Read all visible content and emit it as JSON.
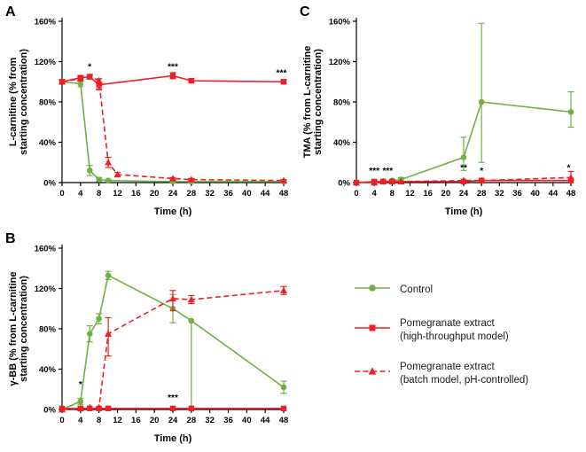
{
  "colors": {
    "control_green": "#72b043",
    "extract_red": "#ec2027",
    "axis_black": "#000000"
  },
  "legend": {
    "items": [
      {
        "label": "Control",
        "color": "#72b043",
        "marker": "circle",
        "dash": false
      },
      {
        "label": "Pomegranate extract\n(high-throughput model)",
        "color": "#ec2027",
        "marker": "square",
        "dash": false
      },
      {
        "label": "Pomegranate extract\n(batch model, pH-controlled)",
        "color": "#ec2027",
        "marker": "triangle",
        "dash": true
      }
    ]
  },
  "chart_data": [
    {
      "panel": "A",
      "type": "line",
      "title": "",
      "xlabel": "Time (h)",
      "ylabel": "L-carnitine (% from\nstarting concentration)",
      "xlim": [
        0,
        48
      ],
      "ylim": [
        0,
        160
      ],
      "xticks": [
        0,
        4,
        8,
        12,
        16,
        20,
        24,
        28,
        32,
        36,
        40,
        44,
        48
      ],
      "yticks": [
        0,
        40,
        80,
        120,
        160
      ],
      "ytick_labels": [
        "0%",
        "40%",
        "80%",
        "120%",
        "160%"
      ],
      "grid": false,
      "legend_position": "none",
      "series": [
        {
          "name": "Control",
          "color": "#72b043",
          "marker": "circle",
          "dash": false,
          "x": [
            0,
            4,
            6,
            8,
            10,
            24,
            28,
            48
          ],
          "y": [
            100,
            98,
            12,
            3,
            2,
            1,
            1,
            1
          ],
          "err_lo": [
            2,
            3,
            5,
            2,
            1,
            1,
            1,
            1
          ],
          "err_hi": [
            2,
            3,
            5,
            2,
            1,
            1,
            1,
            1
          ]
        },
        {
          "name": "Pomegranate extract (high-throughput model)",
          "color": "#ec2027",
          "marker": "square",
          "dash": false,
          "x": [
            0,
            4,
            6,
            8,
            24,
            28,
            48
          ],
          "y": [
            100,
            104,
            105,
            97,
            106,
            101,
            100
          ],
          "err_lo": [
            2,
            2,
            2,
            4,
            3,
            2,
            2
          ],
          "err_hi": [
            2,
            2,
            2,
            2,
            3,
            2,
            2
          ]
        },
        {
          "name": "Pomegranate extract (batch model, pH-controlled)",
          "color": "#ec2027",
          "marker": "triangle",
          "dash": true,
          "x": [
            0,
            4,
            6,
            8,
            10,
            12,
            24,
            28,
            48
          ],
          "y": [
            100,
            103,
            105,
            101,
            20,
            8,
            4,
            3,
            2
          ],
          "err_lo": [
            2,
            2,
            2,
            9,
            5,
            2,
            1,
            1,
            1
          ],
          "err_hi": [
            2,
            2,
            2,
            2,
            5,
            2,
            1,
            1,
            1
          ]
        }
      ],
      "annotations": [
        {
          "x": 6,
          "y": 112,
          "text": "*"
        },
        {
          "x": 24,
          "y": 112,
          "text": "***"
        },
        {
          "x": 47.5,
          "y": 106,
          "text": "***"
        }
      ]
    },
    {
      "panel": "B",
      "type": "line",
      "title": "",
      "xlabel": "Time (h)",
      "ylabel": "γ-BB (% from L-carnitine\nstarting concentration)",
      "xlim": [
        0,
        48
      ],
      "ylim": [
        0,
        160
      ],
      "xticks": [
        0,
        4,
        8,
        12,
        16,
        20,
        24,
        28,
        32,
        36,
        40,
        44,
        48
      ],
      "yticks": [
        0,
        40,
        80,
        120,
        160
      ],
      "ytick_labels": [
        "0%",
        "40%",
        "80%",
        "120%",
        "160%"
      ],
      "grid": false,
      "legend_position": "none",
      "series": [
        {
          "name": "Control",
          "color": "#72b043",
          "marker": "circle",
          "dash": false,
          "x": [
            0,
            4,
            6,
            8,
            10,
            24,
            28,
            48
          ],
          "y": [
            0,
            8,
            75,
            90,
            133,
            100,
            88,
            22
          ],
          "err_lo": [
            0,
            3,
            8,
            5,
            4,
            14,
            88,
            6
          ],
          "err_hi": [
            0,
            3,
            8,
            5,
            4,
            14,
            0,
            6
          ]
        },
        {
          "name": "Pomegranate extract (high-throughput model)",
          "color": "#ec2027",
          "marker": "square",
          "dash": false,
          "x": [
            0,
            4,
            6,
            8,
            10,
            24,
            28,
            48
          ],
          "y": [
            1,
            1,
            1,
            1,
            1,
            1,
            1,
            1
          ],
          "err_lo": [
            0,
            0,
            0,
            0,
            0,
            0,
            0,
            0
          ],
          "err_hi": [
            0,
            0,
            0,
            0,
            0,
            0,
            0,
            0
          ]
        },
        {
          "name": "Pomegranate extract (batch model, pH-controlled)",
          "color": "#ec2027",
          "marker": "triangle",
          "dash": true,
          "x": [
            0,
            4,
            6,
            8,
            10,
            24,
            28,
            48
          ],
          "y": [
            0,
            1,
            2,
            2,
            75,
            110,
            109,
            118
          ],
          "err_lo": [
            0,
            0,
            0,
            0,
            22,
            12,
            4,
            4
          ],
          "err_hi": [
            0,
            0,
            0,
            0,
            16,
            8,
            4,
            4
          ]
        }
      ],
      "annotations": [
        {
          "x": 4,
          "y": 22,
          "text": "*"
        },
        {
          "x": 24,
          "y": 9,
          "text": "***"
        }
      ]
    },
    {
      "panel": "C",
      "type": "line",
      "title": "",
      "xlabel": "Time (h)",
      "ylabel": "TMA (% from L-carnitine\nstarting concentration)",
      "xlim": [
        0,
        48
      ],
      "ylim": [
        0,
        160
      ],
      "xticks": [
        0,
        4,
        8,
        12,
        16,
        20,
        24,
        28,
        32,
        36,
        40,
        44,
        48
      ],
      "yticks": [
        0,
        40,
        80,
        120,
        160
      ],
      "ytick_labels": [
        "0%",
        "40%",
        "80%",
        "120%",
        "160%"
      ],
      "grid": false,
      "legend_position": "none",
      "series": [
        {
          "name": "Control",
          "color": "#72b043",
          "marker": "circle",
          "dash": false,
          "x": [
            0,
            4,
            6,
            8,
            10,
            24,
            28,
            48
          ],
          "y": [
            0,
            1,
            1,
            2,
            3,
            25,
            80,
            70
          ],
          "err_lo": [
            0,
            1,
            1,
            1,
            2,
            13,
            60,
            15
          ],
          "err_hi": [
            0,
            1,
            1,
            1,
            2,
            20,
            78,
            20
          ]
        },
        {
          "name": "Pomegranate extract (high-throughput model)",
          "color": "#ec2027",
          "marker": "square",
          "dash": false,
          "x": [
            0,
            4,
            6,
            8,
            24,
            28,
            48
          ],
          "y": [
            0,
            1,
            1,
            1,
            1,
            2,
            2
          ],
          "err_lo": [
            0,
            0,
            0,
            0,
            0,
            0,
            0
          ],
          "err_hi": [
            0,
            0,
            0,
            0,
            0,
            0,
            0
          ]
        },
        {
          "name": "Pomegranate extract (batch model, pH-controlled)",
          "color": "#ec2027",
          "marker": "triangle",
          "dash": true,
          "x": [
            0,
            4,
            6,
            8,
            10,
            24,
            28,
            48
          ],
          "y": [
            0,
            0,
            1,
            1,
            1,
            2,
            2,
            5
          ],
          "err_lo": [
            0,
            0,
            0,
            0,
            0,
            0,
            0,
            2
          ],
          "err_hi": [
            0,
            0,
            0,
            0,
            0,
            0,
            0,
            6
          ]
        }
      ],
      "annotations": [
        {
          "x": 4,
          "y": 9,
          "text": "***"
        },
        {
          "x": 7,
          "y": 9,
          "text": "***"
        },
        {
          "x": 24,
          "y": 12,
          "text": "**"
        },
        {
          "x": 28,
          "y": 9,
          "text": "*"
        },
        {
          "x": 47.5,
          "y": 12,
          "text": "*"
        }
      ]
    }
  ]
}
